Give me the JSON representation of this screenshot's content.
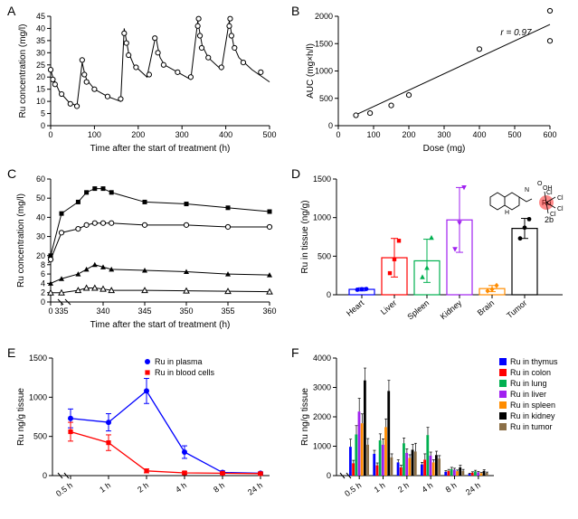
{
  "panelA": {
    "label": "A",
    "xlabel": "Time after the start of treatment (h)",
    "ylabel": "Ru concentration (mg/l)",
    "xlim": [
      0,
      500
    ],
    "xticks": [
      0,
      100,
      200,
      300,
      400,
      500
    ],
    "ylim": [
      0,
      45
    ],
    "yticks": [
      0,
      5,
      10,
      15,
      20,
      25,
      30,
      35,
      40,
      45
    ],
    "line": [
      [
        0,
        23
      ],
      [
        5,
        20
      ],
      [
        10,
        18
      ],
      [
        20,
        14
      ],
      [
        40,
        10
      ],
      [
        60,
        8
      ],
      [
        72,
        26
      ],
      [
        77,
        22
      ],
      [
        82,
        19
      ],
      [
        100,
        15
      ],
      [
        130,
        12
      ],
      [
        160,
        10
      ],
      [
        168,
        40
      ],
      [
        173,
        35
      ],
      [
        178,
        30
      ],
      [
        190,
        25
      ],
      [
        220,
        20
      ],
      [
        240,
        37
      ],
      [
        245,
        32
      ],
      [
        250,
        28
      ],
      [
        260,
        25
      ],
      [
        290,
        22
      ],
      [
        320,
        19
      ],
      [
        336,
        43
      ],
      [
        341,
        38
      ],
      [
        346,
        33
      ],
      [
        360,
        28
      ],
      [
        390,
        23
      ],
      [
        408,
        43
      ],
      [
        413,
        38
      ],
      [
        418,
        33
      ],
      [
        430,
        28
      ],
      [
        460,
        23
      ],
      [
        500,
        18
      ]
    ],
    "points": [
      [
        0,
        23
      ],
      [
        5,
        19
      ],
      [
        10,
        17
      ],
      [
        25,
        13
      ],
      [
        45,
        9
      ],
      [
        60,
        8
      ],
      [
        72,
        27
      ],
      [
        77,
        21
      ],
      [
        82,
        18
      ],
      [
        100,
        15
      ],
      [
        130,
        12
      ],
      [
        160,
        11
      ],
      [
        168,
        38
      ],
      [
        173,
        34
      ],
      [
        178,
        29
      ],
      [
        195,
        24
      ],
      [
        225,
        21
      ],
      [
        238,
        36
      ],
      [
        245,
        30
      ],
      [
        258,
        25
      ],
      [
        290,
        22
      ],
      [
        320,
        20
      ],
      [
        336,
        41
      ],
      [
        338,
        44
      ],
      [
        341,
        37
      ],
      [
        345,
        32
      ],
      [
        360,
        28
      ],
      [
        390,
        24
      ],
      [
        408,
        41
      ],
      [
        410,
        44
      ],
      [
        413,
        37
      ],
      [
        420,
        32
      ],
      [
        440,
        26
      ],
      [
        480,
        22
      ]
    ],
    "stroke": "#000",
    "marker": "#fff",
    "marker_border": "#000"
  },
  "panelB": {
    "label": "B",
    "xlabel": "Dose (mg)",
    "ylabel": "AUC (mg×h/l)",
    "annotation": "r = 0.97",
    "xlim": [
      0,
      600
    ],
    "xticks": [
      0,
      100,
      200,
      300,
      400,
      500,
      600
    ],
    "ylim": [
      0,
      2000
    ],
    "yticks": [
      0,
      500,
      1000,
      1500,
      2000
    ],
    "line": [
      [
        50,
        200
      ],
      [
        600,
        1850
      ]
    ],
    "points": [
      [
        50,
        190
      ],
      [
        90,
        230
      ],
      [
        150,
        370
      ],
      [
        200,
        560
      ],
      [
        400,
        1400
      ],
      [
        600,
        1550
      ],
      [
        600,
        2100
      ]
    ],
    "stroke": "#000",
    "marker": "#fff",
    "marker_border": "#000"
  },
  "panelC": {
    "label": "C",
    "xlabel": "Time after the start of treatment (h)",
    "ylabel": "Ru concentration (mg/l)",
    "xlim": [
      0,
      360
    ],
    "xticks": [
      0,
      335,
      340,
      345,
      350,
      355,
      360
    ],
    "ylim_break": true,
    "ylim": [
      0,
      60
    ],
    "yticks_low": [
      0,
      2,
      4,
      6,
      8
    ],
    "yticks_high": [
      20,
      30,
      40,
      50,
      60
    ],
    "series": [
      {
        "name": "s1",
        "marker": "filled-square",
        "data": [
          [
            0,
            20
          ],
          [
            335,
            42
          ],
          [
            337,
            48
          ],
          [
            338,
            53
          ],
          [
            339,
            55
          ],
          [
            340,
            55
          ],
          [
            341,
            53
          ],
          [
            345,
            48
          ],
          [
            350,
            47
          ],
          [
            355,
            45
          ],
          [
            360,
            43
          ]
        ]
      },
      {
        "name": "s2",
        "marker": "open-circle",
        "data": [
          [
            0,
            18
          ],
          [
            335,
            32
          ],
          [
            337,
            34
          ],
          [
            338,
            36
          ],
          [
            339,
            37
          ],
          [
            340,
            37
          ],
          [
            341,
            37
          ],
          [
            345,
            36
          ],
          [
            350,
            36
          ],
          [
            355,
            35
          ],
          [
            360,
            35
          ]
        ]
      },
      {
        "name": "s3",
        "marker": "filled-triangle",
        "data": [
          [
            0,
            4
          ],
          [
            335,
            5
          ],
          [
            337,
            6
          ],
          [
            338,
            7
          ],
          [
            339,
            8
          ],
          [
            340,
            7.5
          ],
          [
            341,
            7
          ],
          [
            345,
            6.8
          ],
          [
            350,
            6.5
          ],
          [
            355,
            6
          ],
          [
            360,
            5.8
          ]
        ]
      },
      {
        "name": "s4",
        "marker": "open-triangle",
        "data": [
          [
            0,
            2
          ],
          [
            335,
            2
          ],
          [
            337,
            2.5
          ],
          [
            338,
            3
          ],
          [
            339,
            3
          ],
          [
            340,
            2.8
          ],
          [
            341,
            2.5
          ],
          [
            345,
            2.5
          ],
          [
            350,
            2.4
          ],
          [
            355,
            2.3
          ],
          [
            360,
            2.2
          ]
        ]
      }
    ],
    "stroke": "#000"
  },
  "panelD": {
    "label": "D",
    "ylabel": "Ru in tissue (ng/g)",
    "ylim": [
      0,
      1500
    ],
    "yticks": [
      0,
      500,
      1000,
      1500
    ],
    "categories": [
      "Heart",
      "Liver",
      "Spleen",
      "Kidney",
      "Brain",
      "Tumor"
    ],
    "bars": [
      {
        "label": "Heart",
        "mean": 70,
        "err": 20,
        "color": "#0000ff",
        "marker": "circle",
        "points": [
          65,
          72,
          75
        ]
      },
      {
        "label": "Liver",
        "mean": 480,
        "err": 250,
        "color": "#ff0000",
        "marker": "square",
        "points": [
          280,
          460,
          700
        ]
      },
      {
        "label": "Spleen",
        "mean": 440,
        "err": 280,
        "color": "#00b050",
        "marker": "triangle",
        "points": [
          230,
          350,
          740
        ]
      },
      {
        "label": "Kidney",
        "mean": 970,
        "err": 420,
        "color": "#a020f0",
        "marker": "inv-triangle",
        "points": [
          590,
          930,
          1390
        ]
      },
      {
        "label": "Brain",
        "mean": 80,
        "err": 40,
        "color": "#ff8c00",
        "marker": "diamond",
        "points": [
          50,
          70,
          120
        ]
      },
      {
        "label": "Tumor",
        "mean": 860,
        "err": 130,
        "color": "#000000",
        "marker": "circle",
        "points": [
          730,
          870,
          980
        ]
      }
    ],
    "molecule_color": "#ff2a2a"
  },
  "panelE": {
    "label": "E",
    "ylabel": "Ru ng/g tissue",
    "ylim": [
      0,
      1500
    ],
    "yticks": [
      0,
      500,
      1000,
      1500
    ],
    "categories": [
      "0.5 h",
      "1 h",
      "2 h",
      "4 h",
      "8 h",
      "24 h"
    ],
    "series": [
      {
        "name": "Ru in plasma",
        "color": "#0000ff",
        "marker": "circle",
        "data": [
          [
            0,
            730
          ],
          [
            1,
            680
          ],
          [
            2,
            1080
          ],
          [
            3,
            300
          ],
          [
            4,
            40
          ],
          [
            5,
            30
          ]
        ],
        "err": [
          120,
          110,
          160,
          80,
          20,
          15
        ]
      },
      {
        "name": "Ru in blood cells",
        "color": "#ff0000",
        "marker": "square",
        "data": [
          [
            0,
            560
          ],
          [
            1,
            420
          ],
          [
            2,
            60
          ],
          [
            3,
            35
          ],
          [
            4,
            30
          ],
          [
            5,
            25
          ]
        ],
        "err": [
          120,
          100,
          25,
          15,
          12,
          12
        ]
      }
    ],
    "legend": [
      "Ru in plasma",
      "Ru in blood cells"
    ]
  },
  "panelF": {
    "label": "F",
    "ylabel": "Ru ng/g tissue",
    "ylim": [
      0,
      4000
    ],
    "yticks": [
      0,
      1000,
      2000,
      3000,
      4000
    ],
    "categories": [
      "0.5 h",
      "1 h",
      "2 h",
      "4 h",
      "8 h",
      "24 h"
    ],
    "series": [
      {
        "name": "Ru in thymus",
        "color": "#0000ff"
      },
      {
        "name": "Ru in colon",
        "color": "#ff0000"
      },
      {
        "name": "Ru in lung",
        "color": "#00b050"
      },
      {
        "name": "Ru in liver",
        "color": "#a020f0"
      },
      {
        "name": "Ru in spleen",
        "color": "#ff8c00"
      },
      {
        "name": "Ru in kidney",
        "color": "#000000"
      },
      {
        "name": "Ru in tumor",
        "color": "#8b6f47"
      }
    ],
    "data": {
      "Ru in thymus": [
        [
          980,
          260
        ],
        [
          740,
          120
        ],
        [
          450,
          90
        ],
        [
          380,
          70
        ],
        [
          130,
          40
        ],
        [
          60,
          20
        ]
      ],
      "Ru in colon": [
        [
          420,
          100
        ],
        [
          350,
          80
        ],
        [
          280,
          70
        ],
        [
          540,
          200
        ],
        [
          160,
          50
        ],
        [
          100,
          30
        ]
      ],
      "Ru in lung": [
        [
          1400,
          300
        ],
        [
          1200,
          220
        ],
        [
          1100,
          180
        ],
        [
          1380,
          260
        ],
        [
          220,
          60
        ],
        [
          140,
          40
        ]
      ],
      "Ru in liver": [
        [
          2180,
          450
        ],
        [
          1050,
          200
        ],
        [
          770,
          140
        ],
        [
          680,
          120
        ],
        [
          200,
          50
        ],
        [
          110,
          30
        ]
      ],
      "Ru in spleen": [
        [
          1780,
          320
        ],
        [
          1650,
          280
        ],
        [
          600,
          110
        ],
        [
          450,
          90
        ],
        [
          150,
          40
        ],
        [
          80,
          25
        ]
      ],
      "Ru in kidney": [
        [
          3240,
          420
        ],
        [
          2880,
          360
        ],
        [
          880,
          180
        ],
        [
          700,
          130
        ],
        [
          280,
          70
        ],
        [
          160,
          40
        ]
      ],
      "Ru in tumor": [
        [
          1050,
          210
        ],
        [
          620,
          120
        ],
        [
          820,
          280
        ],
        [
          580,
          100
        ],
        [
          160,
          50
        ],
        [
          90,
          30
        ]
      ]
    }
  }
}
